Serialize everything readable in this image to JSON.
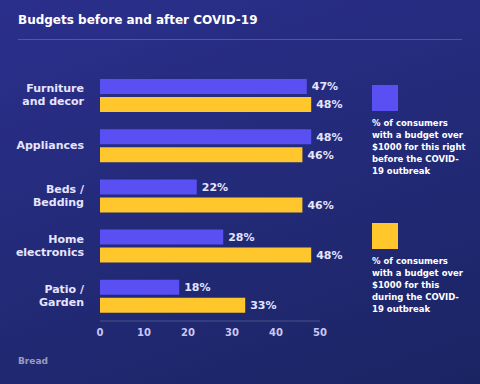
{
  "chart_data": {
    "type": "bar",
    "title": "Budgets before and after COVID-19",
    "orientation": "horizontal",
    "data_labels": true,
    "grid": false,
    "categories": [
      "Furniture and decor",
      "Appliances",
      "Beds / Bedding",
      "Home electronics",
      "Patio / Garden"
    ],
    "series": [
      {
        "name": "% of consumers with a budget over $1000 for this right before the COVID-19 outbreak",
        "color": "#5a4ff3",
        "values": [
          47,
          48,
          22,
          28,
          18
        ],
        "value_labels": [
          "47%",
          "48%",
          "22%",
          "28%",
          "18%"
        ]
      },
      {
        "name": "% of consumers with a budget over $1000 for this during the COVID-19 outbreak",
        "color": "#ffc72c",
        "values": [
          48,
          46,
          46,
          48,
          33
        ],
        "value_labels": [
          "48%",
          "46%",
          "46%",
          "48%",
          "33%"
        ]
      }
    ],
    "xlim": [
      0,
      50
    ],
    "xticks": [
      0,
      10,
      20,
      30,
      40,
      50
    ],
    "annotations": [
      "Bread"
    ]
  }
}
